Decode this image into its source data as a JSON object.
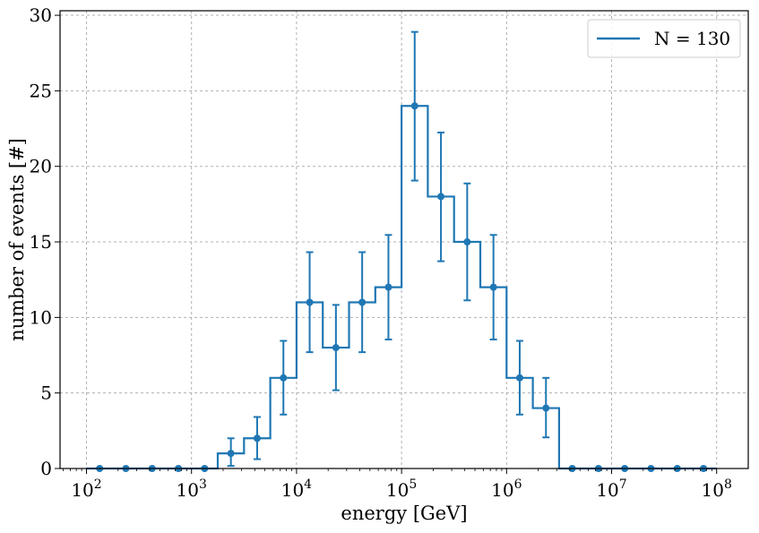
{
  "chart_data": {
    "type": "line",
    "title": "",
    "xlabel": "energy [GeV]",
    "ylabel": "number of events [#]",
    "xscale": "log",
    "xlim": [
      56,
      200000000
    ],
    "ylim": [
      0,
      30.3
    ],
    "grid": true,
    "legend": {
      "placement": "top-right",
      "entries": [
        "N = 130"
      ]
    },
    "line_color": "#1f77b4",
    "x_ticks": [
      {
        "base": "10",
        "exp": "2",
        "value": 100
      },
      {
        "base": "10",
        "exp": "3",
        "value": 1000
      },
      {
        "base": "10",
        "exp": "4",
        "value": 10000
      },
      {
        "base": "10",
        "exp": "5",
        "value": 100000
      },
      {
        "base": "10",
        "exp": "6",
        "value": 1000000
      },
      {
        "base": "10",
        "exp": "7",
        "value": 10000000
      },
      {
        "base": "10",
        "exp": "8",
        "value": 100000000
      }
    ],
    "y_ticks": [
      "0",
      "5",
      "10",
      "15",
      "20",
      "25",
      "30"
    ],
    "bin_edges": [
      100,
      177.8,
      316.2,
      562.3,
      1000,
      1778,
      3162,
      5623,
      10000,
      17783,
      31623,
      56234,
      100000,
      177828,
      316228,
      562341,
      1000000,
      1778279,
      3162278,
      5623413,
      10000000,
      17782794,
      31622777,
      56234133,
      100000000
    ],
    "series": [
      {
        "name": "N = 130",
        "x": [
          133.4,
          237.1,
          421.7,
          749.9,
          1333.5,
          2371.4,
          4217,
          7499,
          13335,
          23714,
          42170,
          74989,
          133352,
          237137,
          421697,
          749894,
          1333521,
          2371374,
          4216965,
          7498942,
          13335214,
          23713737,
          42169650,
          74989421
        ],
        "y": [
          0,
          0,
          0,
          0,
          0,
          1,
          2,
          6,
          11,
          8,
          11,
          12,
          24,
          18,
          15,
          12,
          6,
          4,
          0,
          0,
          0,
          0,
          0,
          0
        ],
        "yerr_low": [
          0,
          0,
          0,
          0,
          0,
          0.83,
          1.38,
          2.43,
          3.3,
          2.82,
          3.3,
          3.46,
          4.94,
          4.28,
          3.87,
          3.46,
          2.43,
          1.94,
          0,
          0,
          0,
          0,
          0,
          0
        ],
        "yerr_high": [
          0,
          0,
          0,
          0,
          0,
          1.0,
          1.41,
          2.45,
          3.32,
          2.83,
          3.32,
          3.46,
          4.9,
          4.24,
          3.87,
          3.46,
          2.45,
          2.0,
          0,
          0,
          0,
          0,
          0,
          0
        ]
      }
    ]
  }
}
